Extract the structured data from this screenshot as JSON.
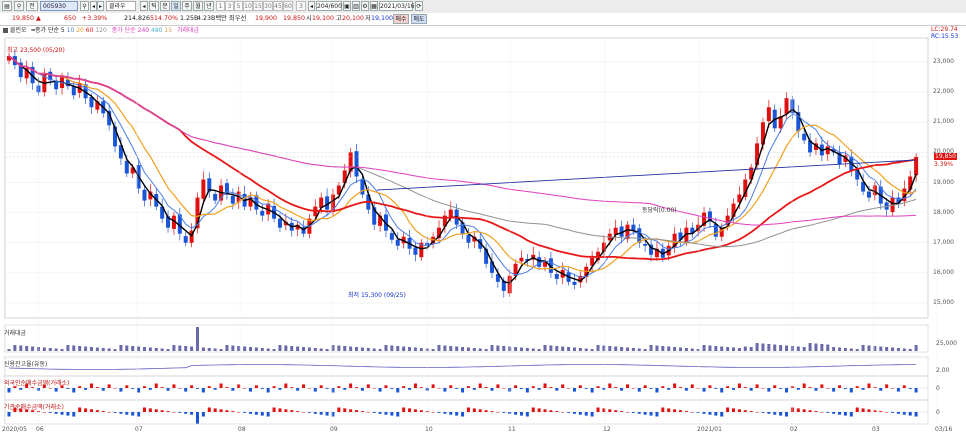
{
  "toolbar": {
    "code": "005930",
    "name_btn": "전",
    "stock_name": "클라우",
    "buttons": [
      "틱",
      "분",
      "일",
      "주",
      "월",
      "년"
    ],
    "intervals": [
      "1",
      "3",
      "5",
      "10",
      "15",
      "30",
      "45",
      "60"
    ],
    "periods_box": "204/600",
    "date_box": "2021/03/16",
    "sell_btn": "매수",
    "buy_btn": "매도",
    "interval_selected": "3"
  },
  "quote": {
    "price": "19,850 ▲",
    "change": "650",
    "pct": "+3.39%",
    "volume": "214,826",
    "vol_ratio": "514.70%",
    "turnover": "1.25B",
    "cap": "4.23B백만 최우선",
    "open": "19,900",
    "high": "19,850",
    "low_label": "시",
    "low": "19,100",
    "hl_label": "고",
    "hl": "20,100",
    "lo2_label": "저",
    "lo2": "19,100"
  },
  "legend": {
    "l1": "클린오",
    "l2": "종가 단순 5",
    "n1": "10",
    "n2": "20",
    "n3": "60",
    "n4": "120",
    "l3": "종가 단순 240",
    "n5": "480",
    "n6": "15",
    "l4": "거래대금"
  },
  "annotations": {
    "high_label": "최고 23,500 (05/20)",
    "low_label": "최저 15,300 (09/25)",
    "trend_label": "동당락(0.00)",
    "lc_label": "LC:29.74",
    "rc_label": "RC:15.53",
    "current_price": "19,850",
    "current_pct": "3.39%"
  },
  "price_axis": [
    "23,000",
    "22,000",
    "21,000",
    "20,000",
    "19,000",
    "18,000",
    "17,000",
    "16,000",
    "15,000"
  ],
  "sub_panels": {
    "p1": "거래대금",
    "p1_axis": "25,000",
    "p2": "신용잔고율(유동)",
    "p2_axis": "2.00",
    "p3": "외국인순매수금액(거래소)",
    "p3_axis": "0",
    "p4": "기관순매수금액(거래소)",
    "p4_axis": "0"
  },
  "x_axis": [
    "2020/05",
    "06",
    "07",
    "08",
    "09",
    "10",
    "11",
    "12",
    "2021/01",
    "02",
    "03",
    "03/16"
  ],
  "chart_data": {
    "type": "candlestick",
    "ylim": [
      14500,
      23800
    ],
    "high_marker": 23500,
    "low_marker": 15300,
    "closes": [
      23200,
      22900,
      22500,
      22800,
      22300,
      22000,
      22600,
      22400,
      22100,
      22500,
      22200,
      21900,
      22300,
      21800,
      21500,
      21700,
      21300,
      20900,
      20200,
      19800,
      19300,
      19500,
      18800,
      18400,
      18700,
      18200,
      17800,
      17500,
      17900,
      17300,
      17000,
      17400,
      18500,
      19100,
      18700,
      18400,
      18900,
      18600,
      18300,
      18700,
      18200,
      18500,
      18100,
      17900,
      18300,
      17800,
      17500,
      17700,
      17400,
      17600,
      17300,
      17800,
      18200,
      18500,
      18100,
      18600,
      18900,
      19400,
      20000,
      19200,
      18600,
      18100,
      17600,
      17900,
      17400,
      17100,
      16900,
      17200,
      16800,
      16600,
      17000,
      16900,
      17200,
      17500,
      17900,
      18100,
      17600,
      17300,
      17000,
      17200,
      16800,
      16300,
      16000,
      15700,
      15400,
      15900,
      16300,
      16500,
      16400,
      16600,
      16200,
      16400,
      16000,
      15800,
      16100,
      15700,
      15600,
      15900,
      16200,
      16500,
      16700,
      17000,
      17300,
      17500,
      17200,
      17600,
      17400,
      17000,
      16900,
      16600,
      16800,
      16500,
      16900,
      17300,
      17100,
      17500,
      17300,
      17600,
      18000,
      17700,
      17200,
      17500,
      17900,
      18300,
      18600,
      19100,
      19500,
      20300,
      21000,
      21500,
      20800,
      21200,
      21800,
      21300,
      20700,
      20400,
      20000,
      20300,
      19900,
      20200,
      20000,
      19600,
      19900,
      19400,
      19100,
      18700,
      18500,
      18900,
      18300,
      18100,
      18500,
      18300,
      18800,
      19200,
      19850
    ],
    "series": [
      {
        "name": "MA5",
        "color": "#000000"
      },
      {
        "name": "MA10",
        "color": "#4a7de8"
      },
      {
        "name": "MA20",
        "color": "#f0a020"
      },
      {
        "name": "MA60",
        "color": "#e81818"
      },
      {
        "name": "MA120",
        "color": "#909090"
      },
      {
        "name": "MA240",
        "color": "#e040c0"
      }
    ]
  },
  "colors": {
    "up": "#e01010",
    "down": "#1a55d8"
  }
}
